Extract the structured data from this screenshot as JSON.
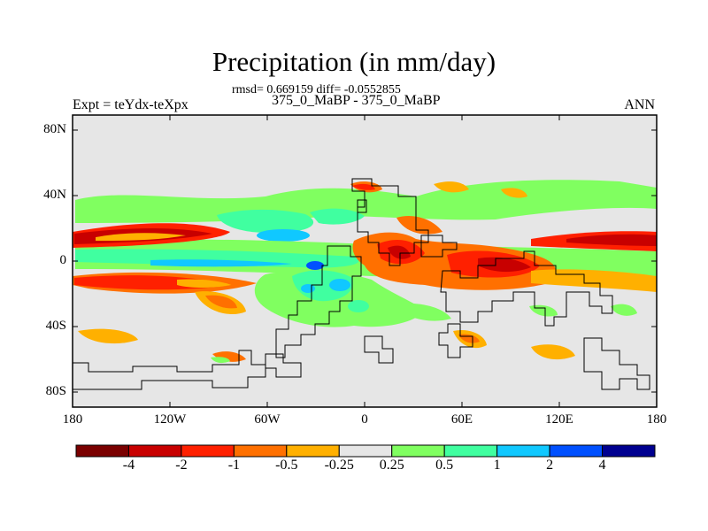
{
  "title": "Precipitation (in mm/day)",
  "stats": {
    "rmsd": "0.669159",
    "diff": "-0.0552855"
  },
  "case_label": "375_0_MaBP - 375_0_MaBP",
  "experiment": "Expt = teYdx-teXpx",
  "season": "ANN",
  "lat_labels": [
    "80N",
    "40N",
    "0",
    "40S",
    "80S"
  ],
  "lon_labels": [
    "180",
    "120W",
    "60W",
    "0",
    "60E",
    "120E",
    "180"
  ],
  "colorbar": {
    "colors": [
      "#7a0000",
      "#c80000",
      "#ff2000",
      "#ff7000",
      "#ffb000",
      "#e6e6e6",
      "#80ff60",
      "#40ffa0",
      "#10c8ff",
      "#0050ff",
      "#000090"
    ],
    "labels": [
      "-4",
      "-2",
      "-1",
      "-0.5",
      "-0.25",
      "0.25",
      "0.5",
      "1",
      "2",
      "4"
    ]
  }
}
